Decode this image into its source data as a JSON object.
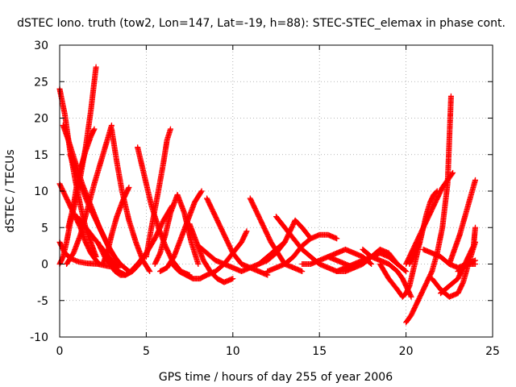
{
  "chart_data": {
    "type": "scatter",
    "title": "dSTEC Iono. truth (tow2, Lon=147, Lat=-19, h=88): STEC-STEC_elemax in phase cont.",
    "xlabel": "GPS time / hours of day 255 of year 2006",
    "ylabel": "dSTEC  / TECUs",
    "xlim": [
      0,
      25
    ],
    "ylim": [
      -10,
      30
    ],
    "xticks": [
      0,
      5,
      10,
      15,
      20,
      25
    ],
    "yticks": [
      -10,
      -5,
      0,
      5,
      10,
      15,
      20,
      25,
      30
    ],
    "grid": true,
    "legend": "none",
    "marker": "+",
    "color": "#ff0000",
    "series": [
      {
        "x": [
          0,
          0.3,
          0.6,
          0.9,
          1.2,
          1.5,
          1.8,
          2.1
        ],
        "y": [
          24,
          20.5,
          15.5,
          11.5,
          8,
          5,
          3,
          1
        ]
      },
      {
        "x": [
          0,
          0.4,
          0.8,
          1.2,
          1.5,
          1.8,
          2.1,
          2.3
        ],
        "y": [
          11,
          9,
          7,
          5,
          3,
          1.5,
          0.5,
          0
        ]
      },
      {
        "x": [
          0,
          0.3,
          0.7,
          1.1,
          1.6,
          2.2,
          2.8,
          3.4
        ],
        "y": [
          3,
          1.5,
          0.7,
          0.3,
          0.1,
          0,
          -0.3,
          -0.5
        ]
      },
      {
        "x": [
          0,
          0.2,
          0.4,
          0.6,
          0.9,
          1.2,
          1.5,
          1.8,
          2.1
        ],
        "y": [
          0,
          1,
          3,
          5.5,
          8.5,
          12,
          16,
          21,
          27
        ]
      },
      {
        "x": [
          0.2,
          0.5,
          0.9,
          1.3,
          1.8,
          2.3,
          2.8,
          3.3
        ],
        "y": [
          19,
          17,
          14,
          11,
          8,
          5,
          2.5,
          0.5
        ]
      },
      {
        "x": [
          0.4,
          0.8,
          1.2,
          1.6,
          2.0,
          2.5,
          3.0
        ],
        "y": [
          0,
          1.5,
          4,
          7.5,
          11,
          15,
          19
        ]
      },
      {
        "x": [
          0.5,
          0.8,
          1.0,
          1.2,
          1.5,
          1.8,
          2.0
        ],
        "y": [
          5,
          8,
          11,
          13,
          15.5,
          17.5,
          18.5
        ]
      },
      {
        "x": [
          0.6,
          1.1,
          1.6,
          2.1,
          2.6,
          3.0,
          3.5,
          4.0
        ],
        "y": [
          15,
          11.5,
          8.5,
          6,
          3.5,
          1.5,
          0,
          -1
        ]
      },
      {
        "x": [
          1.0,
          1.5,
          2.0,
          2.5,
          3.0,
          3.4
        ],
        "y": [
          6.5,
          5,
          3.5,
          2,
          0.5,
          -0.5
        ]
      },
      {
        "x": [
          2.2,
          2.6,
          2.9,
          3.2,
          3.5,
          3.8,
          4.1,
          4.5,
          5.0
        ],
        "y": [
          3,
          1,
          0,
          -1,
          -1.5,
          -1.5,
          -1,
          0,
          1.5
        ]
      },
      {
        "x": [
          2.5,
          2.8,
          3.0,
          3.3,
          3.7,
          4.0
        ],
        "y": [
          0,
          2,
          4,
          6.5,
          9,
          10.5
        ]
      },
      {
        "x": [
          3.0,
          3.4,
          3.8,
          4.2,
          4.6,
          5.0,
          5.5,
          6.0,
          6.5
        ],
        "y": [
          0,
          -1,
          -1.5,
          -1,
          0,
          1.5,
          3.5,
          6,
          8
        ]
      },
      {
        "x": [
          3.0,
          3.3,
          3.6,
          4.0,
          4.4,
          4.8,
          5.2
        ],
        "y": [
          18.5,
          14,
          10,
          6,
          3,
          0.5,
          -1
        ]
      },
      {
        "x": [
          4.5,
          4.9,
          5.3,
          5.7,
          6.1,
          6.5,
          7.0,
          7.5
        ],
        "y": [
          16,
          12,
          8,
          5,
          2.5,
          0.5,
          -1,
          -1.5
        ]
      },
      {
        "x": [
          5.0,
          5.3,
          5.7,
          6.0,
          6.2,
          6.4
        ],
        "y": [
          1,
          5,
          10,
          14,
          17,
          18.5
        ]
      },
      {
        "x": [
          5.5,
          5.8,
          6.1,
          6.4,
          6.8,
          7.2,
          7.6,
          8.0
        ],
        "y": [
          0,
          1.5,
          4,
          7,
          9.5,
          7,
          3,
          0
        ]
      },
      {
        "x": [
          5.8,
          6.2,
          6.6,
          7.0,
          7.4,
          7.8,
          8.2
        ],
        "y": [
          -1,
          -0.5,
          1,
          3.5,
          6,
          8.5,
          10
        ]
      },
      {
        "x": [
          6.5,
          6.9,
          7.3,
          7.7,
          8.1,
          8.5,
          9.0,
          9.5,
          10.0,
          10.5,
          10.8
        ],
        "y": [
          0,
          -1,
          -1.5,
          -2,
          -2,
          -1.5,
          -1,
          0,
          1.5,
          3,
          4.5
        ]
      },
      {
        "x": [
          7.5,
          7.9,
          8.3,
          8.7,
          9.1,
          9.5,
          10.0
        ],
        "y": [
          5.5,
          3,
          0.5,
          -1,
          -2,
          -2.5,
          -2
        ]
      },
      {
        "x": [
          8.5,
          8.8,
          9.2,
          9.6,
          10.0,
          10.5,
          11.0,
          11.5,
          12.0
        ],
        "y": [
          9,
          7.5,
          5.5,
          3.5,
          1.5,
          0,
          -0.5,
          -1,
          -1.5
        ]
      },
      {
        "x": [
          8.0,
          8.5,
          9.0,
          9.5,
          10.0,
          10.5,
          11.0,
          11.5,
          12.0,
          12.5,
          13.0
        ],
        "y": [
          2.5,
          1.5,
          0.5,
          0,
          -0.5,
          -1,
          -0.5,
          0,
          1,
          2,
          3
        ]
      },
      {
        "x": [
          11.0,
          11.4,
          11.8,
          12.2,
          12.6,
          13.0,
          13.5,
          14.0
        ],
        "y": [
          9,
          7,
          5,
          3,
          1.5,
          0,
          -0.5,
          -1
        ]
      },
      {
        "x": [
          11.5,
          12.0,
          12.5,
          13.0,
          13.3,
          13.6,
          14.0,
          14.5
        ],
        "y": [
          0,
          0.5,
          1.5,
          3,
          4.5,
          6,
          5,
          3.5
        ]
      },
      {
        "x": [
          12.0,
          12.5,
          13.0,
          13.5,
          14.0,
          14.5,
          15.0,
          15.5,
          16.0
        ],
        "y": [
          -1,
          -0.5,
          0,
          1,
          2.5,
          3.5,
          4,
          4,
          3.5
        ]
      },
      {
        "x": [
          12.5,
          13.0,
          13.5,
          14.0,
          14.5,
          15.0,
          15.5,
          16.0,
          16.5,
          17.0
        ],
        "y": [
          6.5,
          5,
          3.5,
          2,
          1,
          0,
          -0.5,
          -1,
          -1,
          -0.5
        ]
      },
      {
        "x": [
          14.0,
          14.5,
          15.0,
          15.5,
          16.0,
          16.5,
          17.0,
          17.5,
          18.0
        ],
        "y": [
          0,
          0,
          0.5,
          1,
          1.5,
          2,
          1.5,
          1,
          0
        ]
      },
      {
        "x": [
          15.5,
          16.0,
          16.5,
          17.0,
          17.5,
          18.0,
          18.5,
          19.0,
          19.5
        ],
        "y": [
          1,
          0.5,
          0,
          -0.5,
          0,
          1,
          2,
          1.5,
          0
        ]
      },
      {
        "x": [
          16.0,
          16.5,
          17.0,
          17.5,
          18.0,
          18.5,
          19.0,
          19.5,
          20.0
        ],
        "y": [
          -1,
          -0.5,
          0,
          0.5,
          1,
          1.5,
          1,
          0,
          -1
        ]
      },
      {
        "x": [
          17.5,
          18.0,
          18.5,
          19.0,
          19.5,
          19.8,
          20.0,
          20.3
        ],
        "y": [
          2,
          1,
          0.5,
          0,
          -1,
          -2,
          -3,
          -4.5
        ]
      },
      {
        "x": [
          18.5,
          19.0,
          19.5,
          19.8,
          20.0,
          20.2,
          20.4,
          20.6,
          20.8
        ],
        "y": [
          0,
          -2,
          -3.5,
          -4.5,
          -4,
          -3,
          -1,
          1,
          3
        ]
      },
      {
        "x": [
          20.0,
          20.3,
          20.6,
          20.9,
          21.2,
          21.5,
          21.8,
          22.1,
          22.4,
          22.6
        ],
        "y": [
          -8,
          -7,
          -5.5,
          -4,
          -2.5,
          -1,
          1.5,
          5,
          11,
          23
        ]
      },
      {
        "x": [
          20.0,
          20.3,
          20.6,
          20.9,
          21.2,
          21.5,
          21.8,
          22.1,
          22.4,
          22.7
        ],
        "y": [
          0,
          1.5,
          3,
          4.5,
          6,
          7.5,
          9,
          10.5,
          11.5,
          12.5
        ]
      },
      {
        "x": [
          20.2,
          20.5,
          20.8,
          21.0,
          21.2,
          21.4,
          21.6,
          21.8
        ],
        "y": [
          0,
          1.5,
          3,
          5,
          7,
          8.5,
          9.5,
          10
        ]
      },
      {
        "x": [
          21.0,
          21.5,
          22.0,
          22.5,
          23.0,
          23.5,
          24.0
        ],
        "y": [
          2,
          1.5,
          1,
          0,
          -0.5,
          0,
          0.5
        ]
      },
      {
        "x": [
          21.5,
          22.0,
          22.5,
          23.0,
          23.3,
          23.6,
          24.0
        ],
        "y": [
          -2,
          -3.5,
          -4.5,
          -4,
          -2.5,
          0,
          3
        ]
      },
      {
        "x": [
          22.0,
          22.5,
          23.0,
          23.3,
          23.6,
          23.9,
          24.0
        ],
        "y": [
          -4,
          -3,
          -2,
          -0.5,
          1,
          2.5,
          5
        ]
      },
      {
        "x": [
          22.5,
          22.8,
          23.1,
          23.4,
          23.7,
          24.0
        ],
        "y": [
          0,
          2,
          4,
          6.5,
          9,
          11.5
        ]
      },
      {
        "x": [
          23.0,
          23.3,
          23.6,
          24.0
        ],
        "y": [
          -1,
          -0.5,
          0,
          0
        ]
      }
    ]
  }
}
